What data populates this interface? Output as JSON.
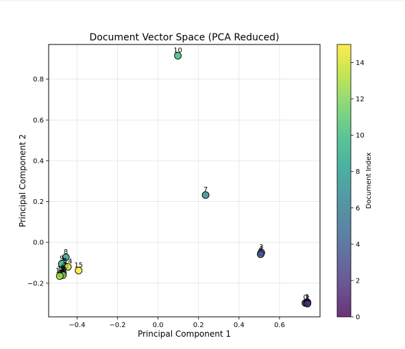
{
  "chart_data": {
    "type": "scatter",
    "title": "Document Vector Space (PCA Reduced)",
    "xlabel": "Principal Component 1",
    "ylabel": "Principal Component 2",
    "xlim": [
      -0.54,
      0.8
    ],
    "ylim": [
      -0.365,
      0.97
    ],
    "xticks": [
      -0.4,
      -0.2,
      0.0,
      0.2,
      0.4,
      0.6
    ],
    "xtick_labels": [
      "−0.4",
      "−0.2",
      "0.0",
      "0.2",
      "0.4",
      "0.6"
    ],
    "yticks": [
      -0.2,
      0.0,
      0.2,
      0.4,
      0.6,
      0.8
    ],
    "ytick_labels": [
      "−0.2",
      "0.0",
      "0.2",
      "0.4",
      "0.6",
      "0.8"
    ],
    "grid": true,
    "colormap": "viridis",
    "colorbar": {
      "label": "Document Index",
      "range": [
        0,
        15
      ],
      "ticks": [
        0,
        2,
        4,
        6,
        8,
        10,
        12,
        14
      ],
      "tick_labels": [
        "0",
        "2",
        "4",
        "6",
        "8",
        "10",
        "12",
        "14"
      ]
    },
    "points": [
      {
        "label": "0",
        "index": 0,
        "x": 0.728,
        "y": -0.297
      },
      {
        "label": "1",
        "index": 1,
        "x": 0.738,
        "y": -0.294
      },
      {
        "label": "2",
        "index": 2,
        "x": 0.738,
        "y": -0.3
      },
      {
        "label": "3",
        "index": 3,
        "x": 0.51,
        "y": -0.05
      },
      {
        "label": "4",
        "index": 4,
        "x": 0.507,
        "y": -0.058
      },
      {
        "label": "5",
        "index": 5,
        "x": -0.46,
        "y": -0.118
      },
      {
        "label": "6",
        "index": 6,
        "x": -0.47,
        "y": -0.15
      },
      {
        "label": "7",
        "index": 7,
        "x": 0.235,
        "y": 0.232
      },
      {
        "label": "8",
        "index": 8,
        "x": -0.455,
        "y": -0.073
      },
      {
        "label": "9",
        "index": 9,
        "x": -0.475,
        "y": -0.105
      },
      {
        "label": "10",
        "index": 10,
        "x": 0.098,
        "y": 0.915
      },
      {
        "label": "11",
        "index": 11,
        "x": -0.478,
        "y": -0.155
      },
      {
        "label": "12",
        "index": 12,
        "x": -0.47,
        "y": -0.16
      },
      {
        "label": "13",
        "index": 13,
        "x": -0.485,
        "y": -0.165
      },
      {
        "label": "14",
        "index": 14,
        "x": -0.445,
        "y": -0.12
      },
      {
        "label": "15",
        "index": 15,
        "x": -0.392,
        "y": -0.138
      }
    ]
  }
}
